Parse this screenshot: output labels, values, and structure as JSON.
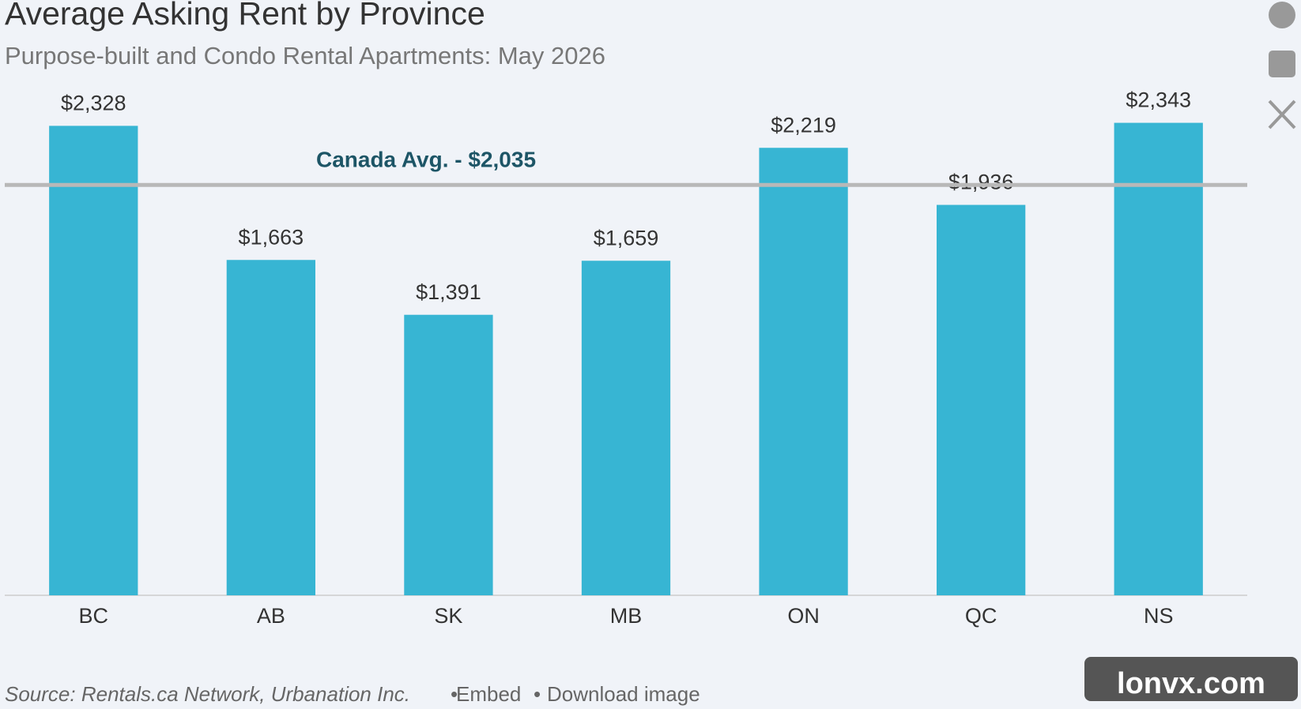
{
  "chart_data": {
    "type": "bar",
    "title": "Average Asking Rent by Province",
    "subtitle": "Purpose-built and Condo Rental Apartments: May 2026",
    "categories": [
      "BC",
      "AB",
      "SK",
      "MB",
      "ON",
      "QC",
      "NS"
    ],
    "values": [
      2328,
      1663,
      1391,
      1659,
      2219,
      1936,
      2343
    ],
    "value_labels": [
      "$2,328",
      "$1,663",
      "$1,391",
      "$1,659",
      "$2,219",
      "$1,936",
      "$2,343"
    ],
    "color": "#37b5d3",
    "ylim": [
      0,
      2400
    ],
    "reference_line": {
      "value": 2035,
      "label": "Canada Avg. - $2,035"
    }
  },
  "footer": {
    "source": "Source: Rentals.ca Network, Urbanation Inc.",
    "links": [
      "Embed",
      "Download image"
    ]
  },
  "watermark": "lonvx.com"
}
